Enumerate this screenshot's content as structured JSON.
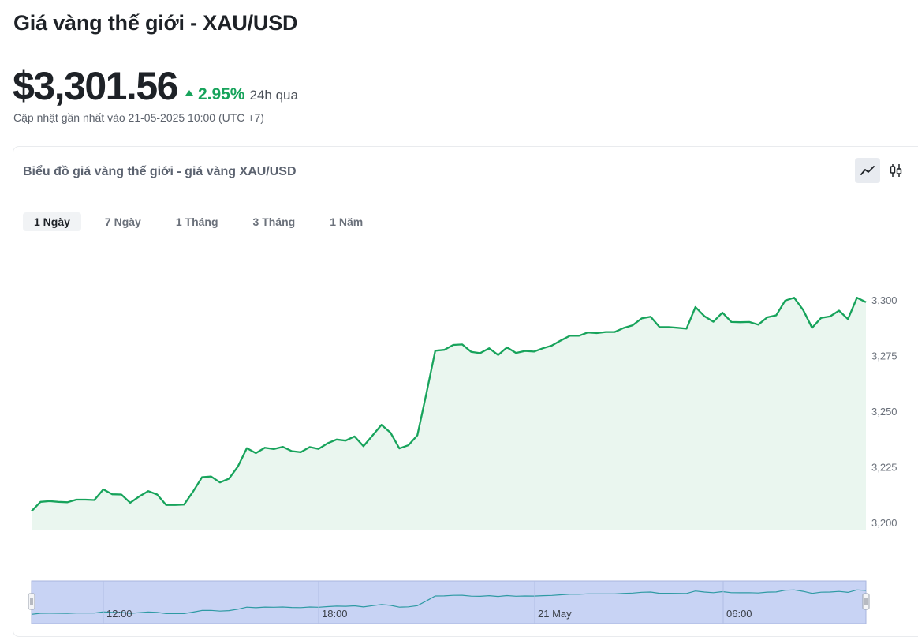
{
  "header": {
    "title": "Giá vàng thế giới - XAU/USD",
    "price": "$3,301.56",
    "change_pct": "2.95%",
    "change_period": "24h qua",
    "updated": "Cập nhật gần nhất vào 21-05-2025 10:00 (UTC +7)"
  },
  "card": {
    "title": "Biểu đồ giá vàng thế giới - giá vàng XAU/USD",
    "chart_types": [
      "line-chart-icon",
      "candlestick-icon"
    ],
    "active_chart_type": "line-chart-icon"
  },
  "tabs": [
    {
      "label": "1 Ngày",
      "active": true
    },
    {
      "label": "7 Ngày",
      "active": false
    },
    {
      "label": "1 Tháng",
      "active": false
    },
    {
      "label": "3 Tháng",
      "active": false
    },
    {
      "label": "1 Năm",
      "active": false
    }
  ],
  "colors": {
    "line": "#17a35b",
    "area": "#eaf6ef",
    "navigator_bg": "#c8d3f4",
    "navigator_line": "#2e9aa3",
    "up": "#17a35b"
  },
  "chart_data": {
    "type": "area",
    "ylim": [
      3200,
      3305
    ],
    "yticks": [
      3200,
      3225,
      3250,
      3275,
      3300
    ],
    "ytick_labels": [
      "3,200",
      "3,225",
      "3,250",
      "3,275",
      "3,300"
    ],
    "navigator_labels": [
      "12:00",
      "18:00",
      "21 May",
      "06:00"
    ],
    "values": [
      3205.1,
      3209.3,
      3209.6,
      3209.3,
      3209.1,
      3210.3,
      3210.3,
      3210.1,
      3214.9,
      3212.7,
      3212.6,
      3208.9,
      3211.7,
      3214.1,
      3212.6,
      3207.9,
      3207.9,
      3208.1,
      3213.9,
      3220.4,
      3220.7,
      3218.0,
      3219.7,
      3225.2,
      3233.4,
      3231.2,
      3233.6,
      3233.0,
      3234.0,
      3232.1,
      3231.6,
      3233.9,
      3233.1,
      3235.6,
      3237.3,
      3236.8,
      3238.7,
      3234.3,
      3239.1,
      3243.9,
      3240.4,
      3233.3,
      3234.7,
      3239.2,
      3257.9,
      3277.2,
      3277.6,
      3279.8,
      3280.0,
      3276.7,
      3276.1,
      3278.3,
      3275.3,
      3278.7,
      3276.2,
      3277.1,
      3276.8,
      3278.3,
      3279.5,
      3281.8,
      3283.9,
      3283.9,
      3285.4,
      3285.1,
      3285.6,
      3285.6,
      3287.4,
      3288.6,
      3291.7,
      3292.5,
      3287.8,
      3287.8,
      3287.5,
      3287.1,
      3296.8,
      3292.7,
      3290.2,
      3294.3,
      3290.1,
      3290.0,
      3290.1,
      3288.9,
      3292.2,
      3293.1,
      3299.7,
      3301.0,
      3295.5,
      3287.5,
      3291.9,
      3292.6,
      3295.2,
      3291.4,
      3301.0,
      3299.0
    ]
  }
}
